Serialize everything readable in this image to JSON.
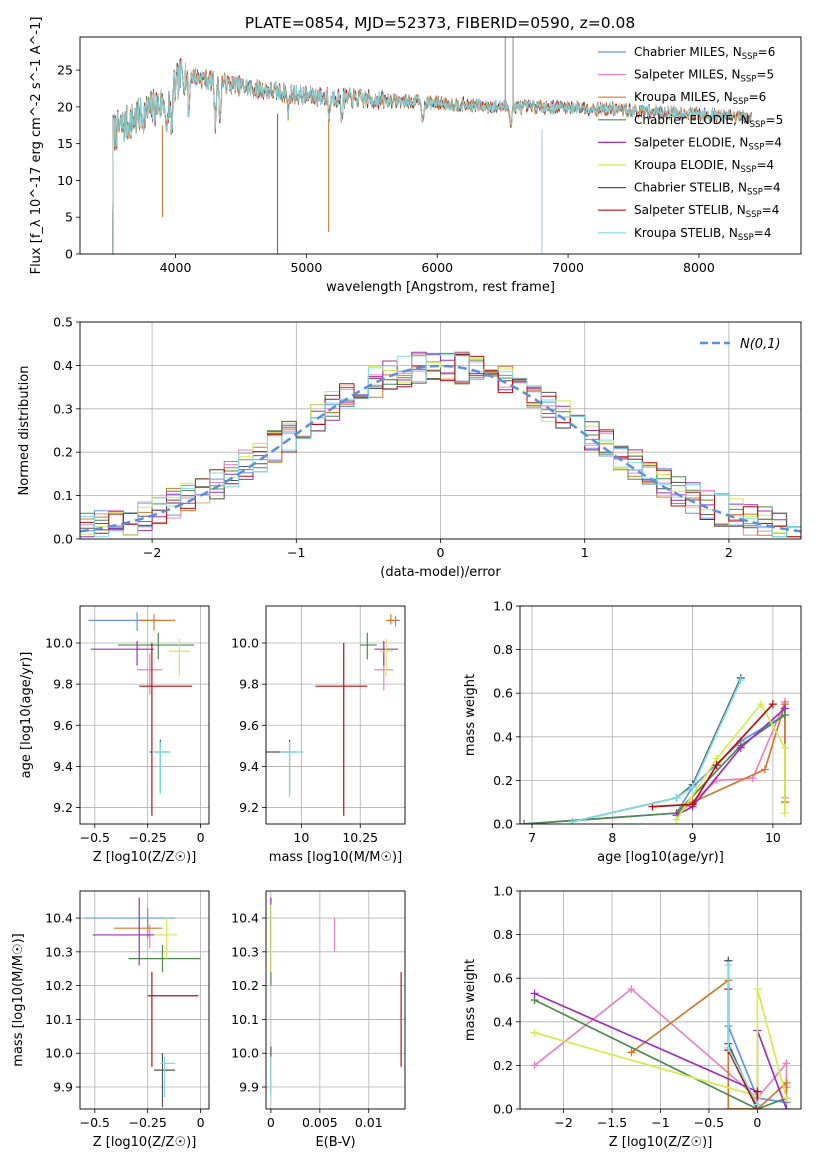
{
  "chart_data": [
    {
      "id": "spectrum",
      "type": "line",
      "title": "PLATE=0854, MJD=52373, FIBERID=0590, z=0.08",
      "xlabel": "wavelength [Angstrom, rest frame]",
      "ylabel": "Flux [f_λ 10^-17 erg cm^-2 s^-1 A^-1]",
      "xlim": [
        3270,
        8780
      ],
      "ylim": [
        0,
        29.5
      ],
      "xticks": [
        4000,
        5000,
        6000,
        7000,
        8000
      ],
      "yticks": [
        0,
        5,
        10,
        15,
        20,
        25
      ],
      "grid": false,
      "legend_position": "top-right",
      "continuum": [
        [
          3520,
          16.5
        ],
        [
          3650,
          18
        ],
        [
          3800,
          19.5
        ],
        [
          3950,
          21
        ],
        [
          4050,
          24.5
        ],
        [
          4300,
          23.5
        ],
        [
          4600,
          22.5
        ],
        [
          5000,
          21.5
        ],
        [
          5500,
          21
        ],
        [
          6000,
          20.5
        ],
        [
          6500,
          20
        ],
        [
          7000,
          20
        ],
        [
          7500,
          19.5
        ],
        [
          8000,
          19
        ],
        [
          8400,
          18.5
        ]
      ],
      "absorption_lines": [
        3934,
        3969,
        4101,
        4304,
        4340,
        4861,
        5175,
        5270,
        5890,
        6563
      ]
    },
    {
      "id": "residuals",
      "type": "line",
      "xlabel": "(data-model)/error",
      "ylabel": "Normed distribution",
      "xlim": [
        -2.5,
        2.5
      ],
      "ylim": [
        0,
        0.5
      ],
      "xticks": [
        -2,
        -1,
        0,
        1,
        2
      ],
      "yticks": [
        0.0,
        0.1,
        0.2,
        0.3,
        0.4,
        0.5
      ],
      "grid": true,
      "legend_position": "top-right",
      "reference_curve": {
        "name": "N(0,1)",
        "mean": 0,
        "sigma": 1
      }
    },
    {
      "id": "age_vs_Z",
      "type": "scatter",
      "xlabel": "Z [log10(Z/Z☉)]",
      "ylabel": "age [log10(age/yr)]",
      "xlim": [
        -0.57,
        0.04
      ],
      "ylim": [
        9.12,
        10.18
      ],
      "xticks": [
        -0.5,
        -0.25,
        0.0
      ],
      "yticks": [
        9.2,
        9.4,
        9.6,
        9.8,
        10.0
      ],
      "grid": true,
      "points": [
        {
          "model": 0,
          "x": -0.3,
          "y": 10.11,
          "xerr": [
            0.23,
            0.1
          ],
          "yerr": [
            0.05,
            0.04
          ]
        },
        {
          "model": 1,
          "x": -0.24,
          "y": 9.87,
          "xerr": [
            0.06,
            0.06
          ],
          "yerr": [
            0.12,
            0.08
          ]
        },
        {
          "model": 2,
          "x": -0.22,
          "y": 10.11,
          "xerr": [
            0.07,
            0.1
          ],
          "yerr": [
            0.05,
            0.03
          ]
        },
        {
          "model": 3,
          "x": -0.2,
          "y": 9.99,
          "xerr": [
            0.19,
            0.17
          ],
          "yerr": [
            0.07,
            0.06
          ]
        },
        {
          "model": 4,
          "x": -0.3,
          "y": 9.97,
          "xerr": [
            0.22,
            0.08
          ],
          "yerr": [
            0.08,
            0.04
          ]
        },
        {
          "model": 5,
          "x": -0.1,
          "y": 9.96,
          "xerr": [
            0.05,
            0.05
          ],
          "yerr": [
            0.12,
            0.06
          ]
        },
        {
          "model": 6,
          "x": -0.19,
          "y": 9.47,
          "xerr": [
            0.05,
            0.04
          ],
          "yerr": [
            0.2,
            0.06
          ]
        },
        {
          "model": 7,
          "x": -0.23,
          "y": 9.79,
          "xerr": [
            0.06,
            0.19
          ],
          "yerr": [
            0.63,
            0.21
          ]
        },
        {
          "model": 8,
          "x": -0.19,
          "y": 9.47,
          "xerr": [
            0.04,
            0.05
          ],
          "yerr": [
            0.2,
            0.05
          ]
        }
      ]
    },
    {
      "id": "age_vs_mass",
      "type": "scatter",
      "xlabel": "mass [log10(M/M☉)]",
      "ylabel": "",
      "xlim": [
        9.85,
        10.44
      ],
      "ylim": [
        9.12,
        10.18
      ],
      "xticks": [
        10.0,
        10.25
      ],
      "yticks": [
        9.2,
        9.4,
        9.6,
        9.8,
        10.0
      ],
      "grid": true,
      "points": [
        {
          "model": 0,
          "x": 10.4,
          "y": 10.11,
          "xerr": [
            0.03,
            0.02
          ],
          "yerr": [
            0.03,
            0.02
          ]
        },
        {
          "model": 1,
          "x": 10.35,
          "y": 9.87,
          "xerr": [
            0.04,
            0.04
          ],
          "yerr": [
            0.1,
            0.06
          ]
        },
        {
          "model": 2,
          "x": 10.38,
          "y": 10.11,
          "xerr": [
            0.02,
            0.03
          ],
          "yerr": [
            0.02,
            0.03
          ]
        },
        {
          "model": 3,
          "x": 10.28,
          "y": 9.99,
          "xerr": [
            0.03,
            0.04
          ],
          "yerr": [
            0.07,
            0.06
          ]
        },
        {
          "model": 4,
          "x": 10.35,
          "y": 9.97,
          "xerr": [
            0.04,
            0.06
          ],
          "yerr": [
            0.08,
            0.04
          ]
        },
        {
          "model": 5,
          "x": 10.36,
          "y": 9.96,
          "xerr": [
            0.03,
            0.03
          ],
          "yerr": [
            0.12,
            0.06
          ]
        },
        {
          "model": 6,
          "x": 9.95,
          "y": 9.47,
          "xerr": [
            0.1,
            0.03
          ],
          "yerr": [
            0.21,
            0.06
          ]
        },
        {
          "model": 7,
          "x": 10.18,
          "y": 9.79,
          "xerr": [
            0.12,
            0.1
          ],
          "yerr": [
            0.63,
            0.21
          ]
        },
        {
          "model": 8,
          "x": 9.95,
          "y": 9.47,
          "xerr": [
            0.04,
            0.06
          ],
          "yerr": [
            0.22,
            0.05
          ]
        }
      ]
    },
    {
      "id": "weight_vs_age",
      "type": "line",
      "xlabel": "age [log10(age/yr)]",
      "ylabel": "mass weight",
      "xlim": [
        6.85,
        10.35
      ],
      "ylim": [
        0,
        1.0
      ],
      "xticks": [
        7,
        8,
        9,
        10
      ],
      "yticks": [
        0.0,
        0.2,
        0.4,
        0.6,
        0.8,
        1.0
      ],
      "grid": true,
      "series": [
        {
          "model": 0,
          "x": [
            6.9,
            8.8,
            9.0,
            9.6,
            10.15
          ],
          "y": [
            0.0,
            0.05,
            0.17,
            0.38,
            0.5
          ]
        },
        {
          "model": 1,
          "x": [
            8.8,
            9.3,
            9.75,
            10.15,
            10.15
          ],
          "y": [
            0.04,
            0.2,
            0.21,
            0.56,
            0.12
          ]
        },
        {
          "model": 2,
          "x": [
            8.8,
            9.0,
            9.9,
            10.15,
            10.15
          ],
          "y": [
            0.05,
            0.1,
            0.25,
            0.55,
            0.1
          ]
        },
        {
          "model": 3,
          "x": [
            6.9,
            8.8,
            9.6,
            10.15
          ],
          "y": [
            0.0,
            0.05,
            0.36,
            0.5
          ]
        },
        {
          "model": 4,
          "x": [
            8.8,
            9.0,
            9.6,
            10.15
          ],
          "y": [
            0.04,
            0.08,
            0.35,
            0.53
          ]
        },
        {
          "model": 5,
          "x": [
            8.8,
            9.3,
            9.85,
            10.15,
            10.15
          ],
          "y": [
            0.02,
            0.3,
            0.55,
            0.35,
            0.05
          ]
        },
        {
          "model": 6,
          "x": [
            7.5,
            8.8,
            9.0,
            9.6
          ],
          "y": [
            0.01,
            0.12,
            0.18,
            0.67
          ]
        },
        {
          "model": 7,
          "x": [
            8.5,
            9.0,
            9.3,
            10.0
          ],
          "y": [
            0.08,
            0.09,
            0.27,
            0.55
          ]
        },
        {
          "model": 8,
          "x": [
            7.5,
            8.8,
            9.0,
            9.6
          ],
          "y": [
            0.01,
            0.12,
            0.17,
            0.66
          ]
        }
      ]
    },
    {
      "id": "mass_vs_Z",
      "type": "scatter",
      "xlabel": "Z [log10(Z/Z☉)]",
      "ylabel": "mass [log10(M/M☉)]",
      "xlim": [
        -0.57,
        0.04
      ],
      "ylim": [
        9.835,
        10.48
      ],
      "xticks": [
        -0.5,
        -0.25,
        0.0
      ],
      "yticks": [
        9.9,
        10.0,
        10.1,
        10.2,
        10.3,
        10.4
      ],
      "grid": true,
      "points": [
        {
          "model": 0,
          "x": -0.25,
          "y": 10.4,
          "xerr": [
            0.3,
            0.13
          ],
          "yerr": [
            0.03,
            0.03
          ]
        },
        {
          "model": 1,
          "x": -0.24,
          "y": 10.35,
          "xerr": [
            0.06,
            0.06
          ],
          "yerr": [
            0.04,
            0.03
          ]
        },
        {
          "model": 2,
          "x": -0.25,
          "y": 10.37,
          "xerr": [
            0.16,
            0.07
          ],
          "yerr": [
            0.03,
            0.03
          ]
        },
        {
          "model": 3,
          "x": -0.18,
          "y": 10.28,
          "xerr": [
            0.16,
            0.18
          ],
          "yerr": [
            0.04,
            0.04
          ]
        },
        {
          "model": 4,
          "x": -0.29,
          "y": 10.35,
          "xerr": [
            0.22,
            0.08
          ],
          "yerr": [
            0.09,
            0.11
          ]
        },
        {
          "model": 5,
          "x": -0.16,
          "y": 10.35,
          "xerr": [
            0.06,
            0.05
          ],
          "yerr": [
            0.07,
            0.05
          ]
        },
        {
          "model": 6,
          "x": -0.18,
          "y": 9.95,
          "xerr": [
            0.04,
            0.06
          ],
          "yerr": [
            0.11,
            0.05
          ]
        },
        {
          "model": 7,
          "x": -0.23,
          "y": 10.17,
          "xerr": [
            0.02,
            0.22
          ],
          "yerr": [
            0.21,
            0.07
          ]
        },
        {
          "model": 8,
          "x": -0.17,
          "y": 9.97,
          "xerr": [
            0.02,
            0.05
          ],
          "yerr": [
            0.1,
            0.02
          ]
        }
      ]
    },
    {
      "id": "mass_vs_ebv",
      "type": "scatter",
      "xlabel": "E(B-V)",
      "ylabel": "",
      "xlim": [
        -0.0005,
        0.0137
      ],
      "ylim": [
        9.835,
        10.48
      ],
      "xticks": [
        0.0,
        0.005,
        0.01
      ],
      "yticks": [
        9.9,
        10.0,
        10.1,
        10.2,
        10.3,
        10.4
      ],
      "grid": true,
      "points": [
        {
          "model": 0,
          "x": 0.0,
          "y": 10.4,
          "xerr": [
            0,
            0
          ],
          "yerr": [
            0.03,
            0.03
          ]
        },
        {
          "model": 1,
          "x": 0.0065,
          "y": 10.35,
          "xerr": [
            0,
            0
          ],
          "yerr": [
            0.05,
            0.05
          ]
        },
        {
          "model": 2,
          "x": 0.0,
          "y": 10.37,
          "xerr": [
            0,
            0
          ],
          "yerr": [
            0.06,
            0.06
          ]
        },
        {
          "model": 3,
          "x": 0.0,
          "y": 10.33,
          "xerr": [
            0,
            0
          ],
          "yerr": [
            0.13,
            0.13
          ]
        },
        {
          "model": 4,
          "x": 0.0,
          "y": 10.35,
          "xerr": [
            0,
            0
          ],
          "yerr": [
            0.11,
            0.11
          ]
        },
        {
          "model": 5,
          "x": 0.0,
          "y": 10.34,
          "xerr": [
            0,
            0
          ],
          "yerr": [
            0.1,
            0.1
          ]
        },
        {
          "model": 6,
          "x": 0.0,
          "y": 9.95,
          "xerr": [
            0,
            0
          ],
          "yerr": [
            0.07,
            0.07
          ]
        },
        {
          "model": 7,
          "x": 0.0133,
          "y": 10.1,
          "xerr": [
            0,
            0
          ],
          "yerr": [
            0.14,
            0.14
          ]
        },
        {
          "model": 8,
          "x": 0.0,
          "y": 9.93,
          "xerr": [
            0,
            0
          ],
          "yerr": [
            0.06,
            0.06
          ]
        }
      ]
    },
    {
      "id": "weight_vs_Z",
      "type": "line",
      "xlabel": "Z [log10(Z/Z☉)]",
      "ylabel": "mass weight",
      "xlim": [
        -2.45,
        0.45
      ],
      "ylim": [
        0,
        1.0
      ],
      "xticks": [
        -2.0,
        -1.5,
        -1.0,
        -0.5,
        0.0
      ],
      "yticks": [
        0.0,
        0.2,
        0.4,
        0.6,
        0.8,
        1.0
      ],
      "grid": true,
      "series": [
        {
          "model": 0,
          "x": [
            -0.3,
            -0.3,
            0.0,
            0.3
          ],
          "y": [
            0.68,
            0.38,
            0.05,
            0.03
          ]
        },
        {
          "model": 1,
          "x": [
            -2.3,
            -1.3,
            0.0,
            0.3,
            0.3
          ],
          "y": [
            0.2,
            0.55,
            0.05,
            0.21,
            0.1
          ]
        },
        {
          "model": 2,
          "x": [
            -1.3,
            -0.3,
            -0.3,
            0.0,
            0.3,
            0.3
          ],
          "y": [
            0.26,
            0.59,
            0.0,
            0.0,
            0.12,
            0.05
          ]
        },
        {
          "model": 3,
          "x": [
            -2.3,
            0.0,
            0.3
          ],
          "y": [
            0.5,
            0.0,
            0.05
          ]
        },
        {
          "model": 4,
          "x": [
            -2.3,
            0.0,
            0.0,
            0.3
          ],
          "y": [
            0.53,
            0.08,
            0.36,
            0.0
          ]
        },
        {
          "model": 5,
          "x": [
            -2.3,
            0.0,
            0.0,
            0.3
          ],
          "y": [
            0.35,
            0.06,
            0.55,
            0.05
          ]
        },
        {
          "model": 6,
          "x": [
            -0.3,
            -0.3,
            0.0
          ],
          "y": [
            0.68,
            0.3,
            0.0
          ]
        },
        {
          "model": 7,
          "x": [
            -0.3,
            -0.3,
            0.0,
            0.0
          ],
          "y": [
            0.55,
            0.27,
            0.0,
            0.08
          ]
        },
        {
          "model": 8,
          "x": [
            -0.3,
            -0.3,
            0.0
          ],
          "y": [
            0.66,
            0.28,
            0.02
          ]
        }
      ]
    }
  ],
  "models": [
    {
      "name": "Chabrier MILES",
      "nssp": "6",
      "color": "#6495ed"
    },
    {
      "name": "Salpeter MILES",
      "nssp": "5",
      "color": "#e983c0"
    },
    {
      "name": "Kroupa MILES",
      "nssp": "6",
      "color": "#d2782d"
    },
    {
      "name": "Chabrier ELODIE",
      "nssp": "5",
      "color": "#4f8a4f"
    },
    {
      "name": "Salpeter ELODIE",
      "nssp": "4",
      "color": "#9b30b8"
    },
    {
      "name": "Kroupa ELODIE",
      "nssp": "4",
      "color": "#d4ea50"
    },
    {
      "name": "Chabrier STELIB",
      "nssp": "4",
      "color": "#555555"
    },
    {
      "name": "Salpeter STELIB",
      "nssp": "4",
      "color": "#b51010"
    },
    {
      "name": "Kroupa STELIB",
      "nssp": "4",
      "color": "#7fdbe8"
    }
  ],
  "colors": {
    "reference_curve": "#5b8fd9",
    "grid": "#b0b0b0",
    "text": "#000000"
  }
}
